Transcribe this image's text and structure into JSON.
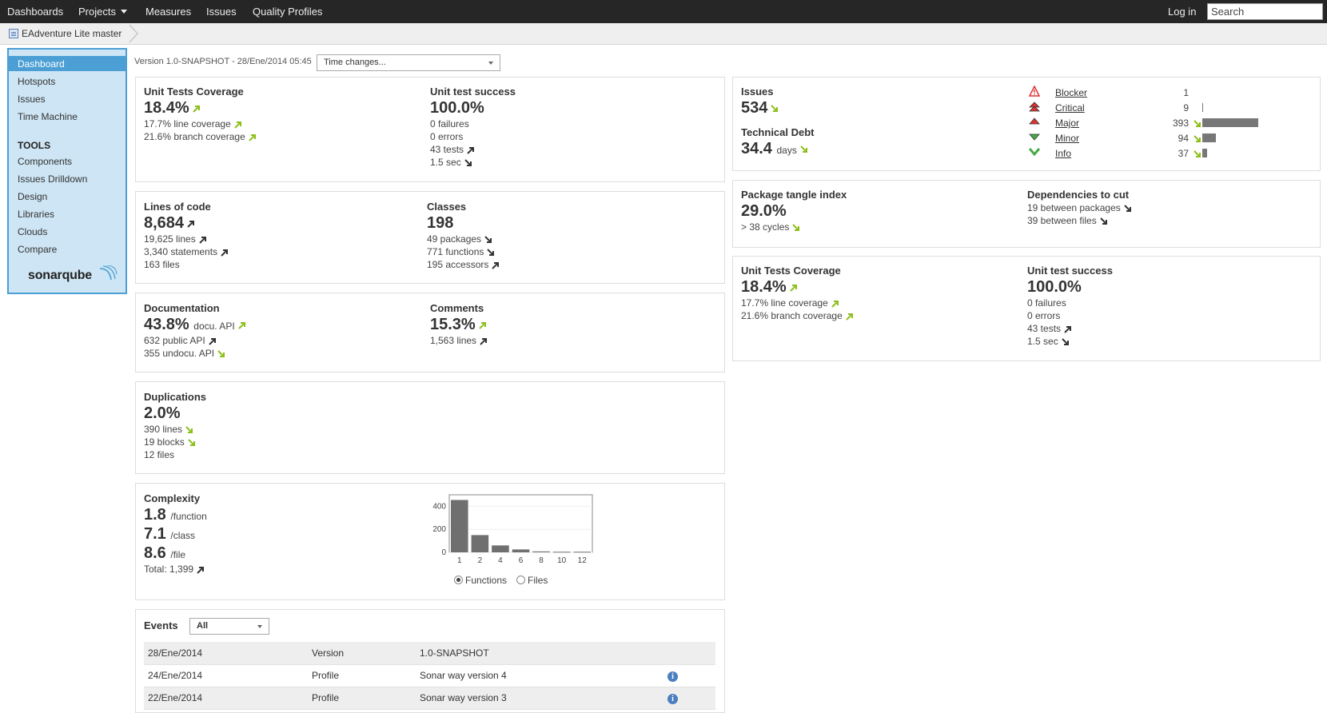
{
  "topnav": {
    "dashboards": "Dashboards",
    "projects": "Projects",
    "measures": "Measures",
    "issues": "Issues",
    "quality_profiles": "Quality Profiles",
    "login": "Log in",
    "search_value": "Search"
  },
  "breadcrumb": {
    "project": "EAdventure Lite master"
  },
  "sidebar": {
    "items": [
      "Dashboard",
      "Hotspots",
      "Issues",
      "Time Machine"
    ],
    "tools_title": "TOOLS",
    "tools": [
      "Components",
      "Issues Drilldown",
      "Design",
      "Libraries",
      "Clouds",
      "Compare"
    ],
    "logo": "sonarqube"
  },
  "header": {
    "version": "Version 1.0-SNAPSHOT - 28/Ene/2014 05:45",
    "time_select": "Time changes..."
  },
  "coverage": {
    "title": "Unit Tests Coverage",
    "value": "18.4%",
    "line": "17.7% line coverage",
    "branch": "21.6% branch coverage"
  },
  "success": {
    "title": "Unit test success",
    "value": "100.0%",
    "failures": "0 failures",
    "errors": "0 errors",
    "tests": "43 tests",
    "time": "1.5 sec"
  },
  "loc": {
    "title": "Lines of code",
    "value": "8,684",
    "lines": "19,625 lines",
    "statements": "3,340 statements",
    "files": "163 files"
  },
  "classes": {
    "title": "Classes",
    "value": "198",
    "packages": "49 packages",
    "functions": "771 functions",
    "accessors": "195 accessors"
  },
  "documentation": {
    "title": "Documentation",
    "value": "43.8%",
    "unit": "docu. API",
    "public_api": "632 public API",
    "undocu_api": "355 undocu. API"
  },
  "comments": {
    "title": "Comments",
    "value": "15.3%",
    "lines": "1,563 lines"
  },
  "duplications": {
    "title": "Duplications",
    "value": "2.0%",
    "lines": "390 lines",
    "blocks": "19 blocks",
    "files": "12 files"
  },
  "complexity": {
    "title": "Complexity",
    "per_function": "1.8",
    "per_function_unit": "/function",
    "per_class": "7.1",
    "per_class_unit": "/class",
    "per_file": "8.6",
    "per_file_unit": "/file",
    "total": "Total: 1,399",
    "radio_functions": "Functions",
    "radio_files": "Files"
  },
  "chart_data": {
    "type": "bar",
    "categories": [
      "1",
      "2",
      "4",
      "6",
      "8",
      "10",
      "12"
    ],
    "values": [
      455,
      150,
      60,
      25,
      8,
      5,
      5
    ],
    "yticks": [
      "400",
      "200",
      "0"
    ],
    "ylim": [
      0,
      500
    ]
  },
  "events": {
    "title": "Events",
    "filter": "All",
    "rows": [
      {
        "date": "28/Ene/2014",
        "category": "Version",
        "description": "1.0-SNAPSHOT"
      },
      {
        "date": "24/Ene/2014",
        "category": "Profile",
        "description": "Sonar way version 4"
      },
      {
        "date": "22/Ene/2014",
        "category": "Profile",
        "description": "Sonar way version 3"
      }
    ]
  },
  "issues": {
    "title": "Issues",
    "value": "534",
    "debt_title": "Technical Debt",
    "debt_value": "34.4",
    "debt_unit": "days",
    "severities": [
      {
        "name": "Blocker",
        "count": "1",
        "share": 0.0
      },
      {
        "name": "Critical",
        "count": "9",
        "share": 0.02
      },
      {
        "name": "Major",
        "count": "393",
        "share": 1.0
      },
      {
        "name": "Minor",
        "count": "94",
        "share": 0.24
      },
      {
        "name": "Info",
        "count": "37",
        "share": 0.09
      }
    ]
  },
  "tangle": {
    "title": "Package tangle index",
    "value": "29.0%",
    "cycles": "> 38 cycles",
    "deps_title": "Dependencies to cut",
    "between_packages": "19 between packages",
    "between_files": "39 between files"
  },
  "coverage2": {
    "title": "Unit Tests Coverage",
    "value": "18.4%",
    "line": "17.7% line coverage",
    "branch": "21.6% branch coverage"
  },
  "success2": {
    "title": "Unit test success",
    "value": "100.0%",
    "failures": "0 failures",
    "errors": "0 errors",
    "tests": "43 tests",
    "time": "1.5 sec"
  },
  "colors": {
    "accent": "#4b9fd5",
    "sidebar_bg": "#cde5f4",
    "trend_green": "#8cbf1a",
    "bar": "#777777",
    "topbar": "#262626"
  }
}
